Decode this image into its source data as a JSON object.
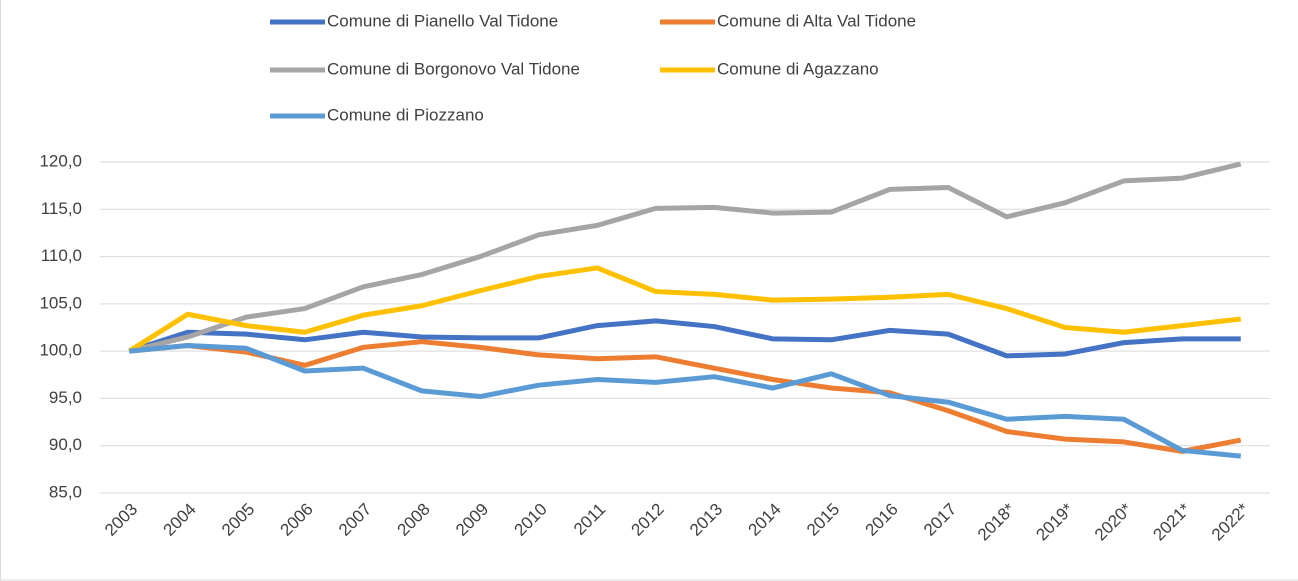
{
  "chart_data": {
    "type": "line",
    "categories": [
      "2003",
      "2004",
      "2005",
      "2006",
      "2007",
      "2008",
      "2009",
      "2010",
      "2011",
      "2012",
      "2013",
      "2014",
      "2015",
      "2016",
      "2017",
      "2018*",
      "2019*",
      "2020*",
      "2021*",
      "2022*"
    ],
    "series": [
      {
        "name": "Comune di Pianello Val Tidone",
        "color": "#4472c4",
        "values": [
          100,
          102.0,
          101.8,
          101.2,
          102.0,
          101.5,
          101.4,
          101.4,
          102.7,
          103.2,
          102.6,
          101.3,
          101.2,
          102.2,
          101.8,
          99.5,
          99.7,
          100.9,
          101.3,
          101.3
        ]
      },
      {
        "name": "Comune di Alta Val Tidone",
        "color": "#ed7d31",
        "values": [
          100,
          100.6,
          99.9,
          98.5,
          100.4,
          101.0,
          100.4,
          99.6,
          99.2,
          99.4,
          98.2,
          97.0,
          96.1,
          95.6,
          93.7,
          91.5,
          90.7,
          90.4,
          89.4,
          90.6
        ]
      },
      {
        "name": "Comune di Borgonovo Val Tidone",
        "color": "#a5a5a5",
        "values": [
          100,
          101.5,
          103.6,
          104.5,
          106.8,
          108.1,
          110.0,
          112.3,
          113.3,
          115.1,
          115.2,
          114.6,
          114.7,
          117.1,
          117.3,
          114.2,
          115.7,
          118.0,
          118.3,
          119.8
        ]
      },
      {
        "name": "Comune di Agazzano",
        "color": "#ffc000",
        "values": [
          100,
          103.9,
          102.7,
          102.0,
          103.8,
          104.8,
          106.4,
          107.9,
          108.8,
          106.3,
          106.0,
          105.4,
          105.5,
          105.7,
          106.0,
          104.5,
          102.5,
          102.0,
          102.7,
          103.4
        ]
      },
      {
        "name": "Comune di Piozzano",
        "color": "#5b9bd5",
        "values": [
          100,
          100.6,
          100.3,
          97.9,
          98.2,
          95.8,
          95.2,
          96.4,
          97.0,
          96.7,
          97.3,
          96.1,
          97.6,
          95.3,
          94.6,
          92.8,
          93.1,
          92.8,
          89.5,
          88.9
        ]
      }
    ],
    "ylim": [
      85,
      120
    ],
    "yticks": [
      {
        "value": 85,
        "label": "85,0"
      },
      {
        "value": 90,
        "label": "90,0"
      },
      {
        "value": 95,
        "label": "95,0"
      },
      {
        "value": 100,
        "label": "100,0"
      },
      {
        "value": 105,
        "label": "105,0"
      },
      {
        "value": 110,
        "label": "110,0"
      },
      {
        "value": 115,
        "label": "115,0"
      },
      {
        "value": 120,
        "label": "120,0"
      }
    ],
    "grid": true,
    "legend": "top"
  }
}
